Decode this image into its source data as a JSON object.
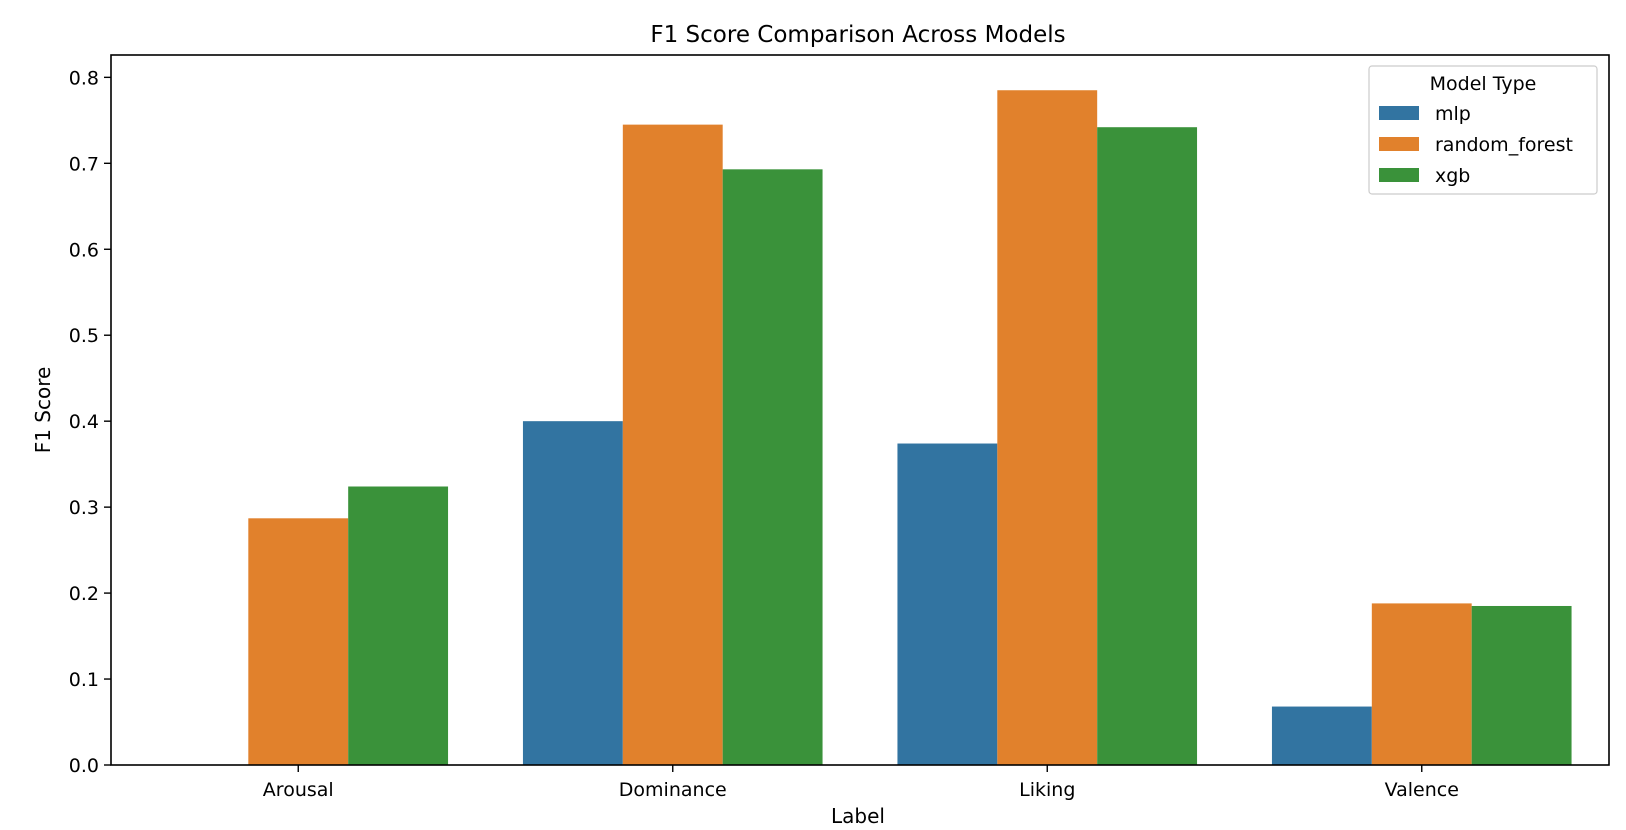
{
  "chart_data": {
    "type": "bar",
    "title": "F1 Score Comparison Across Models",
    "xlabel": "Label",
    "ylabel": "F1 Score",
    "categories": [
      "Arousal",
      "Dominance",
      "Liking",
      "Valence"
    ],
    "ylim": [
      0,
      0.826
    ],
    "yticks": [
      "0.0",
      "0.1",
      "0.2",
      "0.3",
      "0.4",
      "0.5",
      "0.6",
      "0.7",
      "0.8"
    ],
    "grid": false,
    "legend": {
      "title": "Model Type",
      "position": "top-right"
    },
    "series": [
      {
        "name": "mlp",
        "color": "#3274a1",
        "values": [
          0.0,
          0.4,
          0.374,
          0.068
        ]
      },
      {
        "name": "random_forest",
        "color": "#e1812c",
        "values": [
          0.287,
          0.745,
          0.785,
          0.188
        ]
      },
      {
        "name": "xgb",
        "color": "#3a923a",
        "values": [
          0.324,
          0.693,
          0.742,
          0.185
        ]
      }
    ]
  }
}
